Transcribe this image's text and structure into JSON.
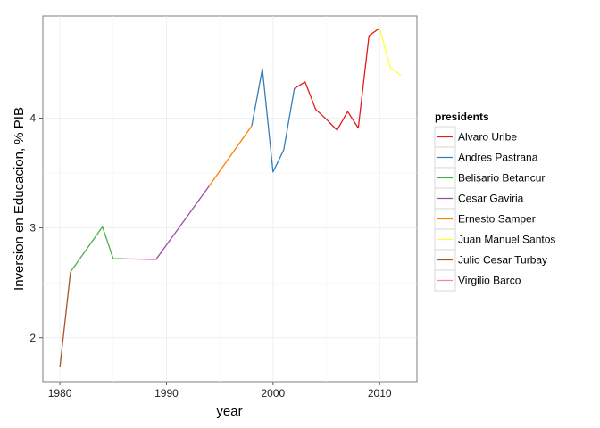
{
  "chart_data": {
    "type": "line",
    "title": "",
    "xlabel": "year",
    "ylabel": "Inversion en Educacion, % PIB",
    "xlim": [
      1978.4,
      2013.5
    ],
    "ylim": [
      1.6,
      4.93
    ],
    "x_ticks": [
      1980,
      1990,
      2000,
      2010
    ],
    "y_ticks": [
      2,
      3,
      4
    ],
    "x_tick_labels": [
      "1980",
      "1990",
      "2000",
      "2010"
    ],
    "y_tick_labels": [
      "2",
      "3",
      "4"
    ],
    "grid": true,
    "legend": {
      "title": "presidents",
      "placement": "right"
    },
    "series": [
      {
        "name": "Alvaro Uribe",
        "color": "#e41a1c",
        "points": [
          [
            2002,
            4.27
          ],
          [
            2003,
            4.33
          ],
          [
            2004,
            4.08
          ],
          [
            2005,
            3.99
          ],
          [
            2006,
            3.89
          ],
          [
            2007,
            4.06
          ],
          [
            2008,
            3.91
          ],
          [
            2009,
            4.75
          ],
          [
            2010,
            4.82
          ]
        ]
      },
      {
        "name": "Andres Pastrana",
        "color": "#377eb8",
        "points": [
          [
            1998,
            3.93
          ],
          [
            1999,
            4.45
          ],
          [
            2000,
            3.51
          ],
          [
            2001,
            3.71
          ],
          [
            2002,
            4.27
          ]
        ]
      },
      {
        "name": "Belisario Betancur",
        "color": "#4daf4a",
        "points": [
          [
            1981,
            2.6
          ],
          [
            1984,
            3.01
          ],
          [
            1985,
            2.72
          ],
          [
            1986,
            2.72
          ]
        ]
      },
      {
        "name": "Cesar Gaviria",
        "color": "#984ea3",
        "points": [
          [
            1989,
            2.71
          ],
          [
            1994,
            3.38
          ]
        ]
      },
      {
        "name": "Ernesto Samper",
        "color": "#ff7f00",
        "points": [
          [
            1994,
            3.38
          ],
          [
            1998,
            3.93
          ]
        ]
      },
      {
        "name": "Juan Manuel Santos",
        "color": "#ffff33",
        "points": [
          [
            2010,
            4.82
          ],
          [
            2011,
            4.46
          ],
          [
            2012,
            4.39
          ]
        ]
      },
      {
        "name": "Julio Cesar Turbay",
        "color": "#a65628",
        "points": [
          [
            1980,
            1.73
          ],
          [
            1981,
            2.6
          ]
        ]
      },
      {
        "name": "Virgilio Barco",
        "color": "#f781bf",
        "points": [
          [
            1986,
            2.72
          ],
          [
            1989,
            2.71
          ]
        ]
      }
    ]
  }
}
